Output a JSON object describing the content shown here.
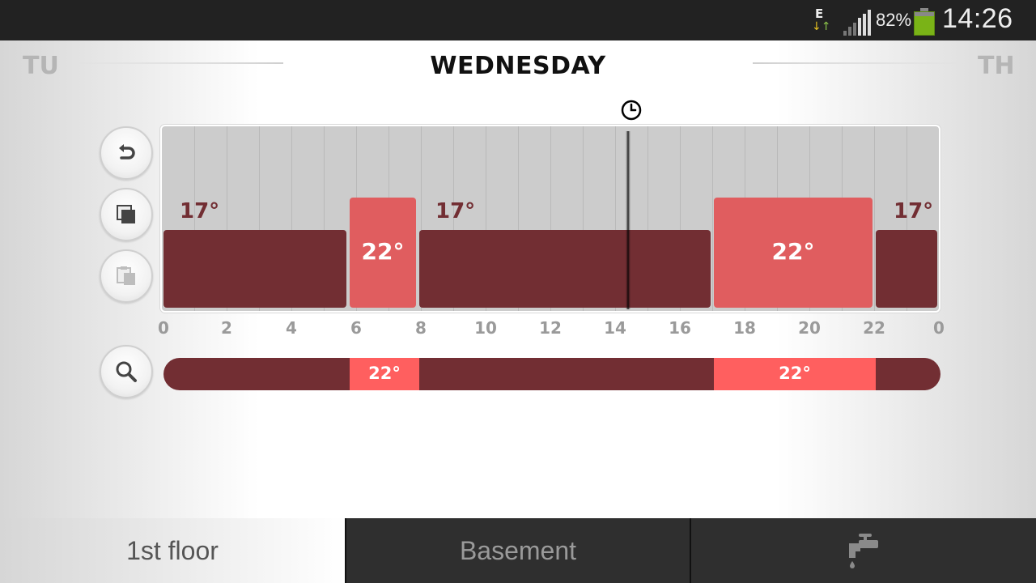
{
  "status_bar": {
    "network_type": "E",
    "battery_percent": "82%",
    "time": "14:26",
    "icons": [
      "network-data-icon",
      "signal-icon",
      "battery-icon"
    ]
  },
  "header": {
    "prev_day": "TU",
    "current_day": "WEDNESDAY",
    "next_day": "TH"
  },
  "toolbar": {
    "undo_icon": "undo-icon",
    "copy_icon": "copy-icon",
    "paste_icon": "paste-icon",
    "zoom_icon": "search-icon"
  },
  "schedule": {
    "current_time_hour": 14.4,
    "hour_labels": [
      "0",
      "2",
      "4",
      "6",
      "8",
      "10",
      "12",
      "14",
      "16",
      "18",
      "20",
      "22",
      "0"
    ],
    "blocks": [
      {
        "start_hour": 0,
        "end_hour": 5.75,
        "level": "low",
        "label": "17°"
      },
      {
        "start_hour": 5.75,
        "end_hour": 7.9,
        "level": "high",
        "label": "22°"
      },
      {
        "start_hour": 7.9,
        "end_hour": 17.0,
        "level": "low",
        "label": "17°"
      },
      {
        "start_hour": 17.0,
        "end_hour": 22.0,
        "level": "high",
        "label": "22°"
      },
      {
        "start_hour": 22.0,
        "end_hour": 24,
        "level": "low",
        "label": "17°"
      }
    ]
  },
  "overview": {
    "segments": [
      {
        "start_hour": 5.75,
        "end_hour": 7.9,
        "label": "22°"
      },
      {
        "start_hour": 17.0,
        "end_hour": 22.0,
        "label": "22°"
      }
    ]
  },
  "tabs": [
    {
      "label": "1st floor",
      "active": true
    },
    {
      "label": "Basement",
      "active": false
    },
    {
      "icon": "water-tap-icon",
      "active": false
    }
  ],
  "colors": {
    "low": "#722e33",
    "high": "#e05d5f",
    "overview_high": "#ff5f5f"
  }
}
